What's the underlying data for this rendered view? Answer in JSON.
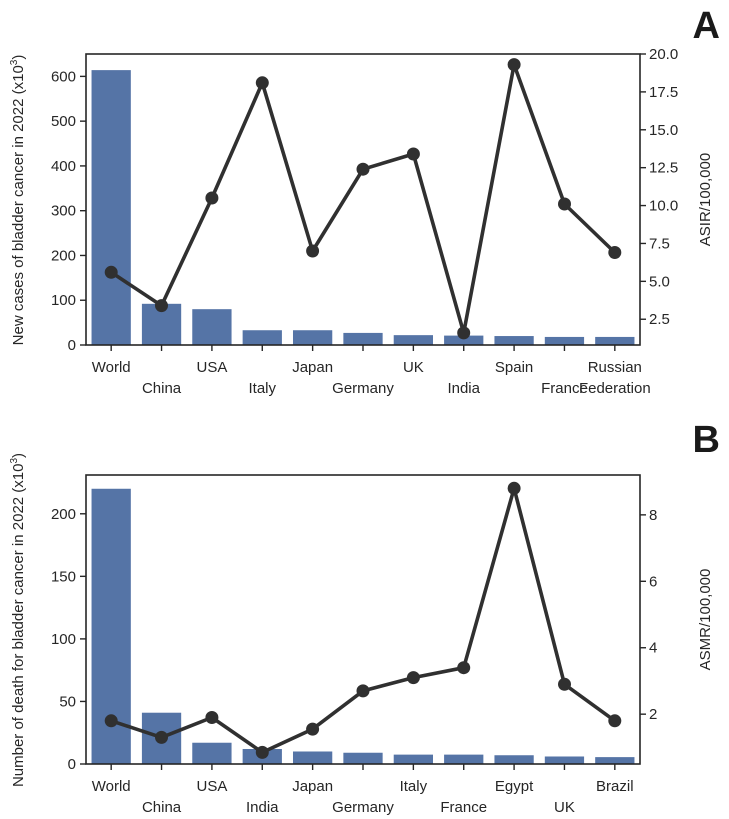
{
  "chart_data": [
    {
      "panel": "A",
      "type": "bar",
      "categories": [
        "World",
        "China",
        "USA",
        "Italy",
        "Japan",
        "Germany",
        "UK",
        "India",
        "Spain",
        "France",
        "Russian Federation"
      ],
      "series": [
        {
          "name": "New cases (x10^3)",
          "type": "bar",
          "axis": "left",
          "values": [
            614,
            92,
            80,
            33,
            33,
            27,
            22,
            21,
            20,
            18,
            18
          ]
        },
        {
          "name": "ASIR/100,000",
          "type": "line",
          "axis": "right",
          "values": [
            5.6,
            3.4,
            10.5,
            18.1,
            7.0,
            12.4,
            13.4,
            1.6,
            19.3,
            10.1,
            6.9
          ]
        }
      ],
      "ylabel_prefix": "New cases of bladder cancer in 2022 (x10",
      "ylabel_sup": "3",
      "ylabel_suffix": ")",
      "y2label": "ASIR/100,000",
      "ylim": [
        0,
        650
      ],
      "yticks": [
        0,
        100,
        200,
        300,
        400,
        500,
        600
      ],
      "y2lim": [
        0.8,
        20.0
      ],
      "y2ticks": [
        2.5,
        5.0,
        7.5,
        10.0,
        12.5,
        15.0,
        17.5,
        20.0
      ],
      "y2tick_labels": [
        "2.5",
        "5.0",
        "7.5",
        "10.0",
        "12.5",
        "15.0",
        "17.5",
        "20.0"
      ]
    },
    {
      "panel": "B",
      "type": "bar",
      "categories": [
        "World",
        "China",
        "USA",
        "India",
        "Japan",
        "Germany",
        "Italy",
        "France",
        "Egypt",
        "UK",
        "Brazil"
      ],
      "series": [
        {
          "name": "Deaths (x10^3)",
          "type": "bar",
          "axis": "left",
          "values": [
            220,
            41,
            17,
            12,
            10,
            9,
            7.5,
            7.5,
            7,
            6,
            5.5
          ]
        },
        {
          "name": "ASMR/100,000",
          "type": "line",
          "axis": "right",
          "values": [
            1.8,
            1.3,
            1.9,
            0.85,
            1.55,
            2.7,
            3.1,
            3.4,
            8.8,
            2.9,
            1.8
          ]
        }
      ],
      "ylabel_prefix": "Number of death for bladder cancer in 2022 (x10",
      "ylabel_sup": "3",
      "ylabel_suffix": ")",
      "y2label": "ASMR/100,000",
      "ylim": [
        0,
        231
      ],
      "yticks": [
        0,
        50,
        100,
        150,
        200
      ],
      "y2lim": [
        0.5,
        9.2
      ],
      "y2ticks": [
        2,
        4,
        6,
        8
      ],
      "y2tick_labels": [
        "2",
        "4",
        "6",
        "8"
      ]
    }
  ],
  "colors": {
    "bar": "#5574a6",
    "line": "#303030",
    "axis": "#262626",
    "text": "#262626"
  }
}
